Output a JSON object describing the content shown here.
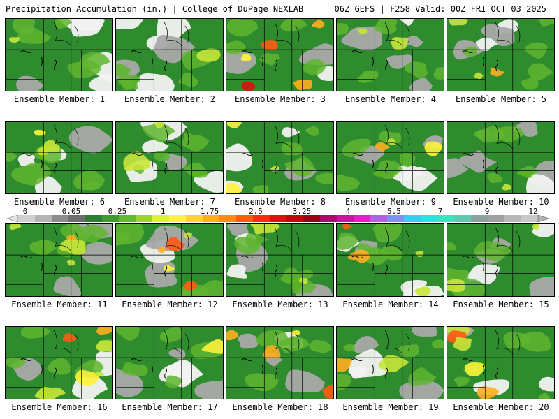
{
  "header": {
    "left": "Precipitation Accumulation (in.) | College of DuPage NEXLAB",
    "right": "06Z GEFS | F258 Valid: 00Z FRI OCT 03 2025"
  },
  "colorbar": {
    "labels": [
      "0",
      "0.05",
      "0.25",
      "1",
      "1.75",
      "2.5",
      "3.25",
      "4",
      "5.5",
      "7",
      "9",
      "12"
    ],
    "colors": [
      "#d0d0d0",
      "#b4b4b4",
      "#8c8c8c",
      "#6e6e6e",
      "#2e7d32",
      "#3f9b2f",
      "#63b82f",
      "#9ed037",
      "#dff03a",
      "#fff23a",
      "#ffd22e",
      "#ffae22",
      "#ff8a1e",
      "#ff5a14",
      "#ff2a10",
      "#e00e0e",
      "#b80a0a",
      "#8c0a14",
      "#a0106a",
      "#c018a0",
      "#e020c8",
      "#b060e0",
      "#8090f0",
      "#40c8f0",
      "#30e0e0",
      "#40e0c0",
      "#60c8b0",
      "#8ca0a0",
      "#a0a0a0",
      "#b8b8b8",
      "#c8c8c8"
    ]
  },
  "members": [
    {
      "label": "Ensemble Member: 1",
      "intensity": 0.15
    },
    {
      "label": "Ensemble Member: 2",
      "intensity": 0.1
    },
    {
      "label": "Ensemble Member: 3",
      "intensity": 0.75
    },
    {
      "label": "Ensemble Member: 4",
      "intensity": 0.25
    },
    {
      "label": "Ensemble Member: 5",
      "intensity": 0.45
    },
    {
      "label": "Ensemble Member: 6",
      "intensity": 0.4
    },
    {
      "label": "Ensemble Member: 7",
      "intensity": 0.3
    },
    {
      "label": "Ensemble Member: 8",
      "intensity": 0.4
    },
    {
      "label": "Ensemble Member: 9",
      "intensity": 0.45
    },
    {
      "label": "Ensemble Member: 10",
      "intensity": 0.2
    },
    {
      "label": "Ensemble Member: 11",
      "intensity": 0.6
    },
    {
      "label": "Ensemble Member: 12",
      "intensity": 0.7
    },
    {
      "label": "Ensemble Member: 13",
      "intensity": 0.35
    },
    {
      "label": "Ensemble Member: 14",
      "intensity": 0.6
    },
    {
      "label": "Ensemble Member: 15",
      "intensity": 0.35
    },
    {
      "label": "Ensemble Member: 16",
      "intensity": 0.8
    },
    {
      "label": "Ensemble Member: 17",
      "intensity": 0.2
    },
    {
      "label": "Ensemble Member: 18",
      "intensity": 0.55
    },
    {
      "label": "Ensemble Member: 19",
      "intensity": 0.35
    },
    {
      "label": "Ensemble Member: 20",
      "intensity": 0.65
    }
  ]
}
